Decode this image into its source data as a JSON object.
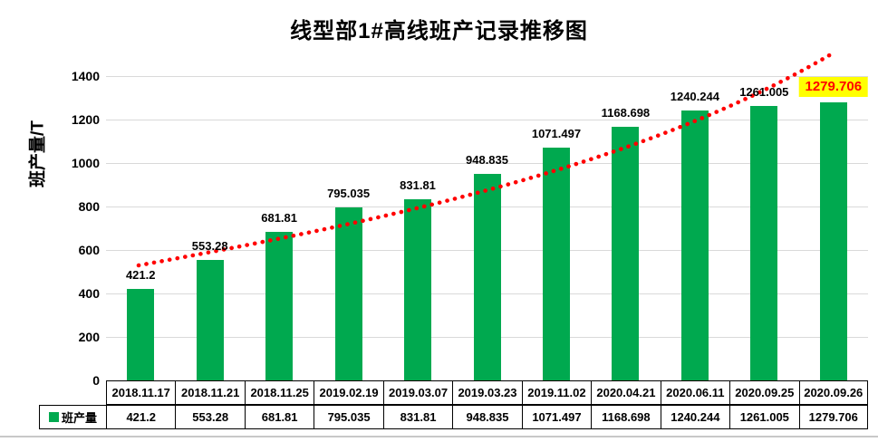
{
  "chart_data": {
    "type": "bar",
    "title": "线型部1#高线班产记录推移图",
    "ylabel": "班产量/T",
    "xlabel": "",
    "categories": [
      "2018.11.17",
      "2018.11.21",
      "2018.11.25",
      "2019.02.19",
      "2019.03.07",
      "2019.03.23",
      "2019.11.02",
      "2020.04.21",
      "2020.06.11",
      "2020.09.25",
      "2020.09.26"
    ],
    "series": [
      {
        "name": "班产量",
        "values": [
          421.2,
          553.28,
          681.81,
          795.035,
          831.81,
          948.835,
          1071.497,
          1168.698,
          1240.244,
          1261.005,
          1279.706
        ]
      }
    ],
    "value_labels": [
      "421.2",
      "553.28",
      "681.81",
      "795.035",
      "831.81",
      "948.835",
      "1071.497",
      "1168.698",
      "1240.244",
      "1261.005",
      "1279.706"
    ],
    "ylim": [
      0,
      1400
    ],
    "yticks": [
      0,
      200,
      400,
      600,
      800,
      1000,
      1200,
      1400
    ],
    "grid": true,
    "legend_entries": [
      "班产量"
    ],
    "legend_position": "bottom-left-table-cell",
    "data_table_shown": true,
    "trendline": {
      "style": "dotted",
      "color": "#ff0000"
    },
    "highlight": {
      "index": 10,
      "background": "#ffff00",
      "text_color": "#ff0000"
    },
    "colors": {
      "bar": "#00a94f",
      "gridline": "#d9d9d9",
      "axis_text": "#000000",
      "table_border": "#000000"
    }
  }
}
